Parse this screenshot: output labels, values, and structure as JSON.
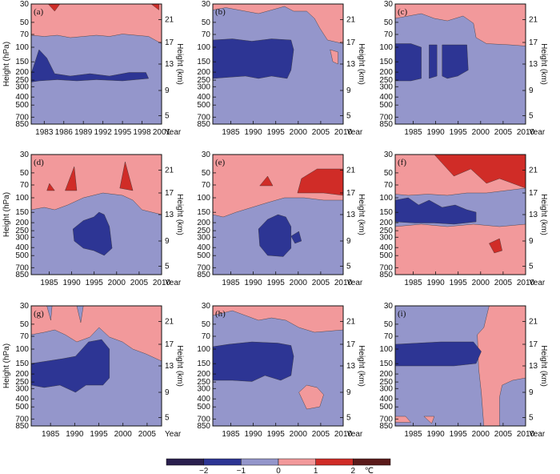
{
  "chart_data": {
    "type": "heatmap",
    "description_units": "temperature anomaly contour bands (deg C) vs year and pressure height",
    "levels": [
      -2,
      -1,
      0,
      1,
      2
    ],
    "level_unit": "℃",
    "colors": {
      "lt_m2": "#2a1f4e",
      "m2_m1": "#2d3594",
      "m1_0": "#9496cb",
      "p0_1": "#f2999b",
      "p1_2": "#d02c27",
      "gt_2": "#5a1a1a"
    },
    "pressure_ticks": [
      "30",
      "50",
      "70",
      "100",
      "150",
      "200",
      "250",
      "300",
      "400",
      "500",
      "700",
      "850"
    ],
    "height_ticks_km": [
      "21",
      "17",
      "13",
      "9",
      "5"
    ],
    "left_axis_label": "Height (hPa)",
    "right_axis_label": "Height (km)",
    "x_label": "Year",
    "panels": [
      {
        "label": "(a)",
        "xlim": [
          1981,
          2001
        ],
        "x_ticks": [
          "1983",
          "1986",
          "1989",
          "1992",
          "1995",
          "1998",
          "2001"
        ],
        "show_left": true
      },
      {
        "label": "(b)",
        "xlim": [
          1981,
          2010
        ],
        "x_ticks": [
          "1985",
          "1990",
          "1995",
          "2000",
          "2005",
          "2010"
        ],
        "show_left": false
      },
      {
        "label": "(c)",
        "xlim": [
          1981,
          2010
        ],
        "x_ticks": [
          "1985",
          "1990",
          "1995",
          "2000",
          "2005",
          "2010"
        ],
        "show_left": false
      },
      {
        "label": "(d)",
        "xlim": [
          1981,
          2010
        ],
        "x_ticks": [
          "1985",
          "1990",
          "1995",
          "2000",
          "2005",
          "2010"
        ],
        "show_left": true
      },
      {
        "label": "(e)",
        "xlim": [
          1981,
          2010
        ],
        "x_ticks": [
          "1985",
          "1990",
          "1995",
          "2000",
          "2005",
          "2010"
        ],
        "show_left": false
      },
      {
        "label": "(f)",
        "xlim": [
          1981,
          2010
        ],
        "x_ticks": [
          "1985",
          "1990",
          "1995",
          "2000",
          "2005",
          "2010"
        ],
        "show_left": false
      },
      {
        "label": "(g)",
        "xlim": [
          1981,
          2008
        ],
        "x_ticks": [
          "1985",
          "1990",
          "1995",
          "2000",
          "2005"
        ],
        "show_left": true
      },
      {
        "label": "(h)",
        "xlim": [
          1981,
          2010
        ],
        "x_ticks": [
          "1985",
          "1990",
          "1995",
          "2000",
          "2005",
          "2010"
        ],
        "show_left": false
      },
      {
        "label": "(i)",
        "xlim": [
          1981,
          2010
        ],
        "x_ticks": [
          "1985",
          "1990",
          "1995",
          "2000",
          "2005",
          "2010"
        ],
        "show_left": false
      }
    ]
  }
}
